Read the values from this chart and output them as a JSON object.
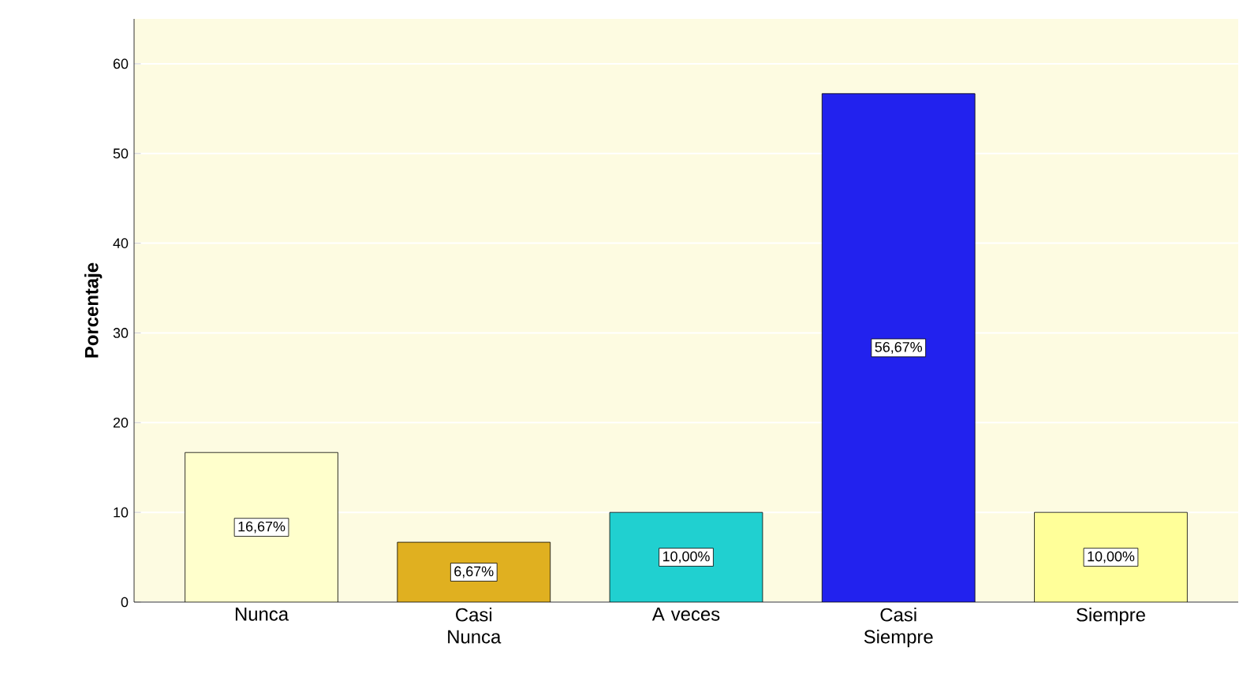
{
  "chart_data": {
    "type": "bar",
    "ylabel": "Porcentaje",
    "categories": [
      "Nunca",
      "Casi Nunca",
      "A veces",
      "Casi Siempre",
      "Siempre"
    ],
    "values": [
      16.67,
      6.67,
      10.0,
      56.67,
      10.0
    ],
    "value_labels": [
      "16,67%",
      "6,67%",
      "10,00%",
      "56,67%",
      "10,00%"
    ],
    "colors": [
      "#ffffcc",
      "#e0b020",
      "#20d0d0",
      "#2222ee",
      "#ffff99"
    ],
    "ylim": [
      0,
      65
    ],
    "yticks": [
      0,
      10,
      20,
      30,
      40,
      50,
      60
    ],
    "grid": "y"
  }
}
